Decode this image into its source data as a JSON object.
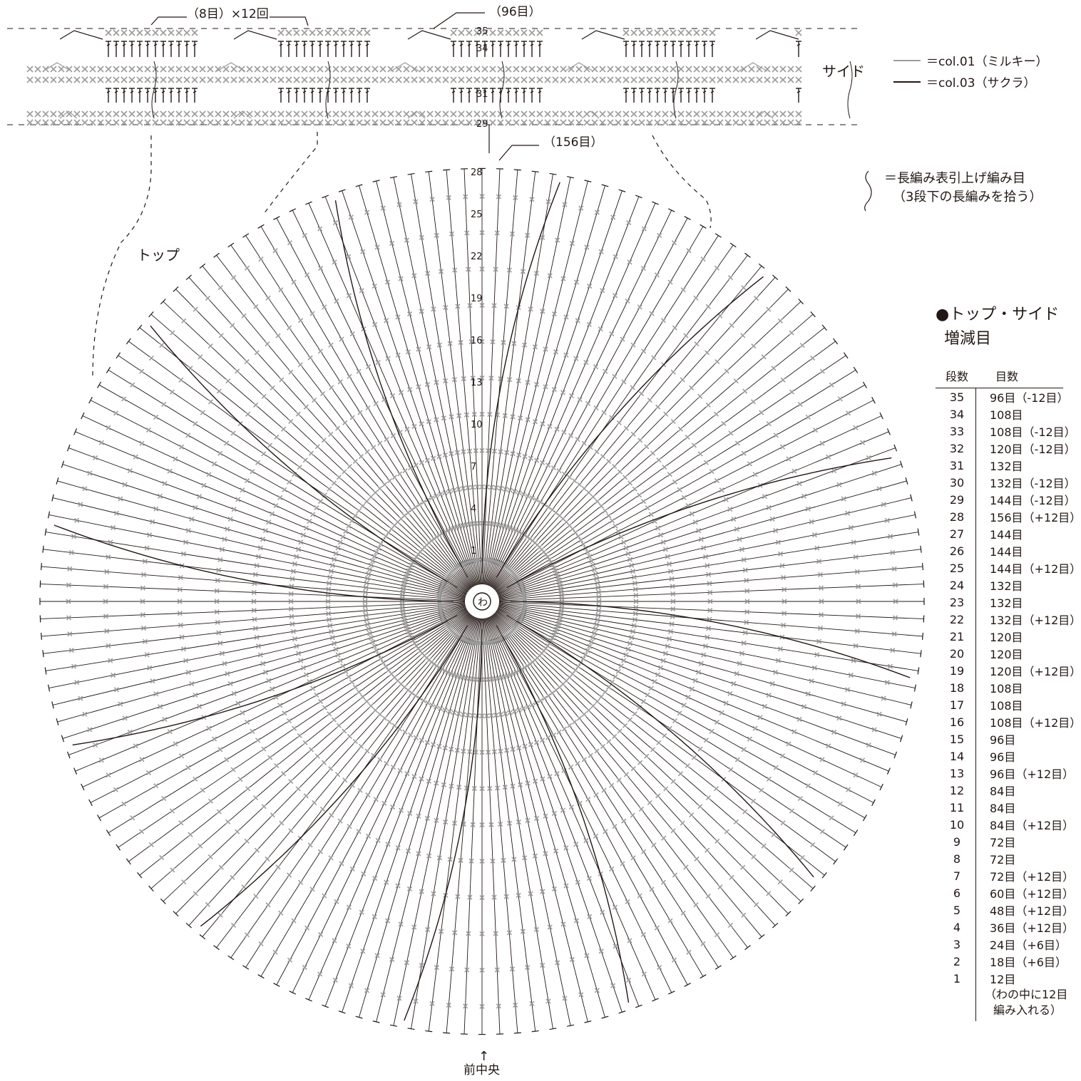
{
  "labels": {
    "repeat": "（8目）×12回",
    "side_count": "（96目）",
    "top_count": "（156目）",
    "side": "サイド",
    "top": "トップ",
    "front_center": "前中央",
    "arrow": "↑",
    "center_ring": "わ"
  },
  "legend": {
    "col01": "＝col.01（ミルキー）",
    "col03": "＝col.03（サクラ）",
    "col01_color": "#9c9c9c",
    "col03_color": "#231815",
    "fpdc_line1": "＝長編み表引上げ編み目",
    "fpdc_line2": "（3段下の長編みを拾う）"
  },
  "row_numbers": {
    "side": [
      "35",
      "34",
      "31",
      "29"
    ],
    "top": [
      "28",
      "25",
      "22",
      "19",
      "16",
      "13",
      "10",
      "7",
      "4",
      "1"
    ]
  },
  "table": {
    "title_line1": "●トップ・サイド",
    "title_line2": "増減目",
    "col_rows": "段数",
    "col_stitches": "目数",
    "rows": [
      {
        "row": "35",
        "stitches": "96目（-12目）"
      },
      {
        "row": "34",
        "stitches": "108目"
      },
      {
        "row": "33",
        "stitches": "108目（-12目）"
      },
      {
        "row": "32",
        "stitches": "120目（-12目）"
      },
      {
        "row": "31",
        "stitches": "132目"
      },
      {
        "row": "30",
        "stitches": "132目（-12目）"
      },
      {
        "row": "29",
        "stitches": "144目（-12目）"
      },
      {
        "row": "28",
        "stitches": "156目（+12目）"
      },
      {
        "row": "27",
        "stitches": "144目"
      },
      {
        "row": "26",
        "stitches": "144目"
      },
      {
        "row": "25",
        "stitches": "144目（+12目）"
      },
      {
        "row": "24",
        "stitches": "132目"
      },
      {
        "row": "23",
        "stitches": "132目"
      },
      {
        "row": "22",
        "stitches": "132目（+12目）"
      },
      {
        "row": "21",
        "stitches": "120目"
      },
      {
        "row": "20",
        "stitches": "120目"
      },
      {
        "row": "19",
        "stitches": "120目（+12目）"
      },
      {
        "row": "18",
        "stitches": "108目"
      },
      {
        "row": "17",
        "stitches": "108目"
      },
      {
        "row": "16",
        "stitches": "108目（+12目）"
      },
      {
        "row": "15",
        "stitches": "96目"
      },
      {
        "row": "14",
        "stitches": "96目"
      },
      {
        "row": "13",
        "stitches": "96目（+12目）"
      },
      {
        "row": "12",
        "stitches": "84目"
      },
      {
        "row": "11",
        "stitches": "84目"
      },
      {
        "row": "10",
        "stitches": "84目（+12目）"
      },
      {
        "row": "9",
        "stitches": "72目"
      },
      {
        "row": "8",
        "stitches": "72目"
      },
      {
        "row": "7",
        "stitches": "72目（+12目）"
      },
      {
        "row": "6",
        "stitches": "60目（+12目）"
      },
      {
        "row": "5",
        "stitches": "48目（+12目）"
      },
      {
        "row": "4",
        "stitches": "36目（+12目）"
      },
      {
        "row": "3",
        "stitches": "24目（+6目）"
      },
      {
        "row": "2",
        "stitches": "18目（+6目）"
      },
      {
        "row": "1",
        "stitches": "12目"
      }
    ],
    "note_line1": "（わの中に12目",
    "note_line2": "編み入れる）"
  }
}
